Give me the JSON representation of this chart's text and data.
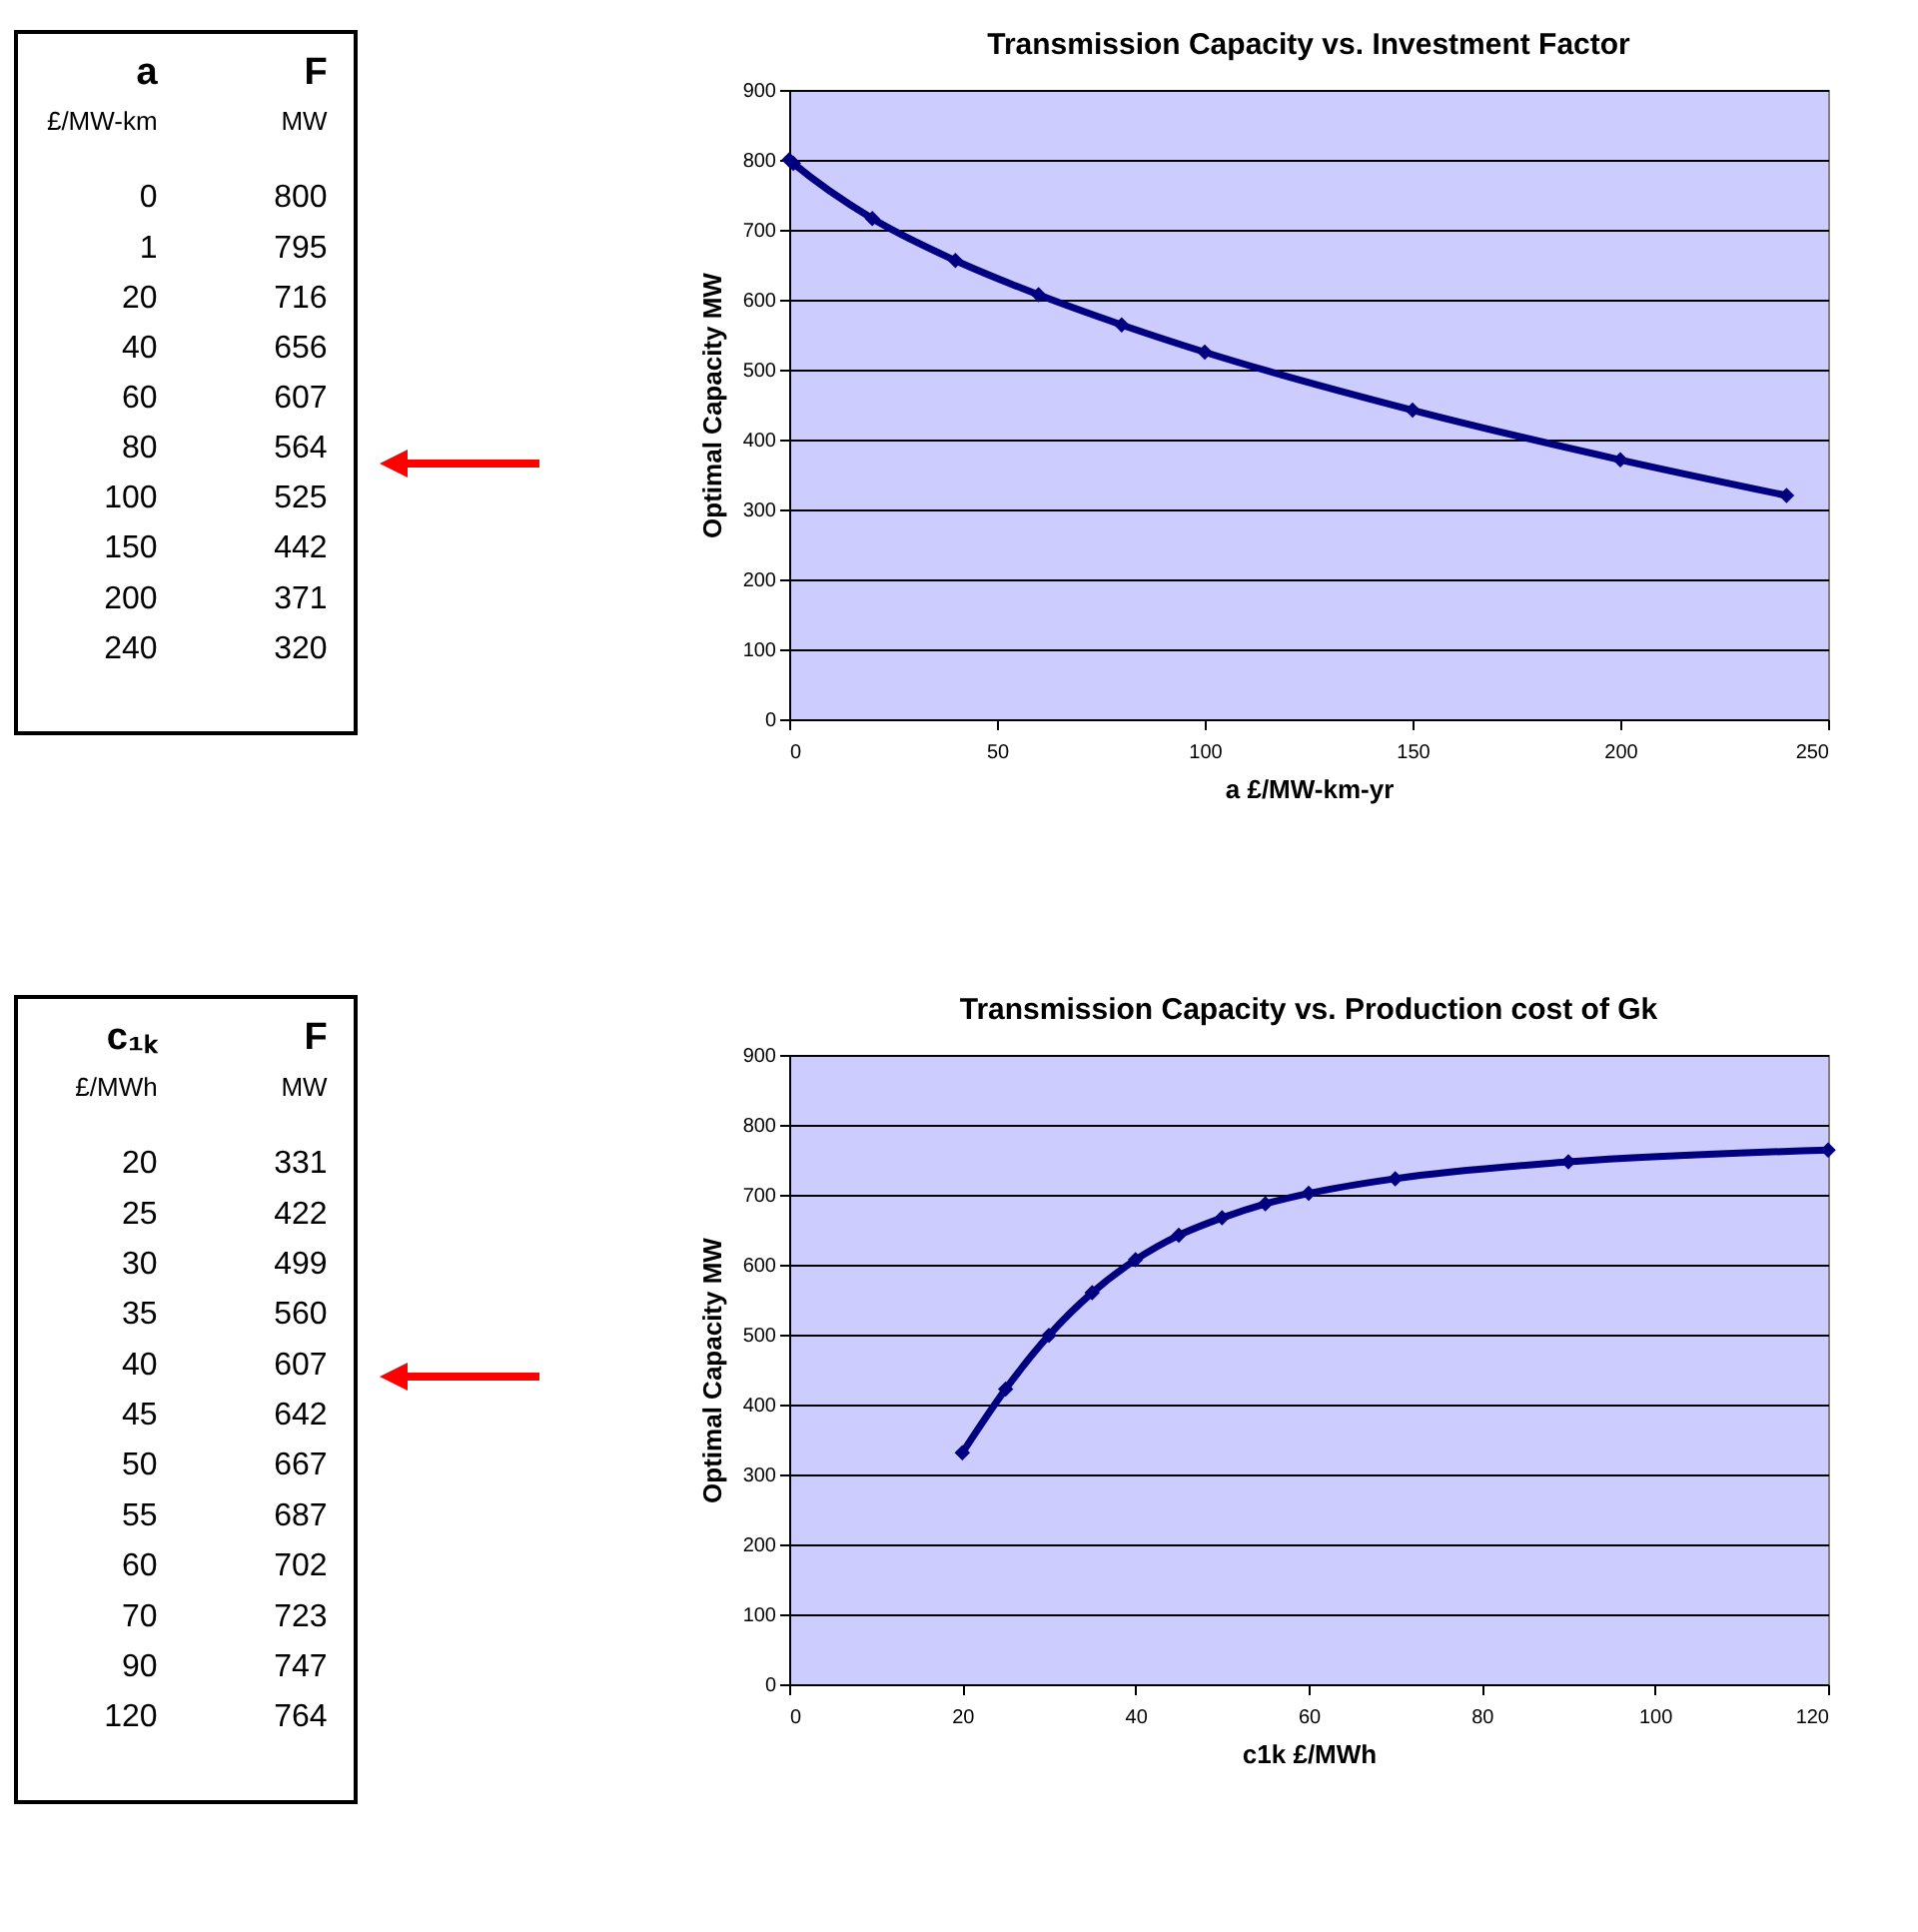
{
  "chart_data": [
    {
      "type": "heatmap",
      "ylabel": "a",
      "categories": [
        "F"
      ],
      "annotations": [
        "£/MW-km",
        "MW"
      ],
      "data_labels": true,
      "y_categories": [
        "0",
        "1",
        "20",
        "40",
        "60",
        "80",
        "100",
        "150",
        "200",
        "240"
      ],
      "cells": [
        [
          800
        ],
        [
          795
        ],
        [
          716
        ],
        [
          656
        ],
        [
          607
        ],
        [
          564
        ],
        [
          525
        ],
        [
          442
        ],
        [
          371
        ],
        [
          320
        ]
      ]
    },
    {
      "type": "line",
      "title": "Transmission Capacity vs. Investment Factor",
      "xlabel": "a  £/MW-km-yr",
      "ylabel": "Optimal Capacity  MW",
      "x": [
        0,
        1,
        20,
        40,
        60,
        80,
        100,
        150,
        200,
        240
      ],
      "series": [
        {
          "color": "#000080",
          "values": [
            800,
            795,
            716,
            656,
            607,
            564,
            525,
            442,
            371,
            320
          ]
        }
      ],
      "xlim": [
        0,
        250
      ],
      "xticks": [
        0,
        50,
        100,
        150,
        200,
        250
      ],
      "ylim": [
        0,
        900
      ],
      "yticks": [
        0,
        100,
        200,
        300,
        400,
        500,
        600,
        700,
        800,
        900
      ],
      "grid": "y",
      "marker": "diamond",
      "line_style": "solid"
    },
    {
      "type": "heatmap",
      "ylabel": "c₁ₖ",
      "categories": [
        "F"
      ],
      "annotations": [
        "£/MWh",
        "MW"
      ],
      "data_labels": true,
      "y_categories": [
        "20",
        "25",
        "30",
        "35",
        "40",
        "45",
        "50",
        "55",
        "60",
        "70",
        "90",
        "120"
      ],
      "cells": [
        [
          331
        ],
        [
          422
        ],
        [
          499
        ],
        [
          560
        ],
        [
          607
        ],
        [
          642
        ],
        [
          667
        ],
        [
          687
        ],
        [
          702
        ],
        [
          723
        ],
        [
          747
        ],
        [
          764
        ]
      ]
    },
    {
      "type": "line",
      "title": "Transmission Capacity vs. Production cost of Gk",
      "xlabel": "c1k  £/MWh",
      "ylabel": "Optimal Capacity  MW",
      "x": [
        20,
        25,
        30,
        35,
        40,
        45,
        50,
        55,
        60,
        70,
        90,
        120
      ],
      "series": [
        {
          "color": "#000080",
          "values": [
            331,
            422,
            499,
            560,
            607,
            642,
            667,
            687,
            702,
            723,
            747,
            764
          ]
        }
      ],
      "xlim": [
        0,
        120
      ],
      "xticks": [
        0,
        20,
        40,
        60,
        80,
        100,
        120
      ],
      "ylim": [
        0,
        900
      ],
      "yticks": [
        0,
        100,
        200,
        300,
        400,
        500,
        600,
        700,
        800,
        900
      ],
      "grid": "y",
      "marker": "diamond",
      "line_style": "solid"
    }
  ]
}
